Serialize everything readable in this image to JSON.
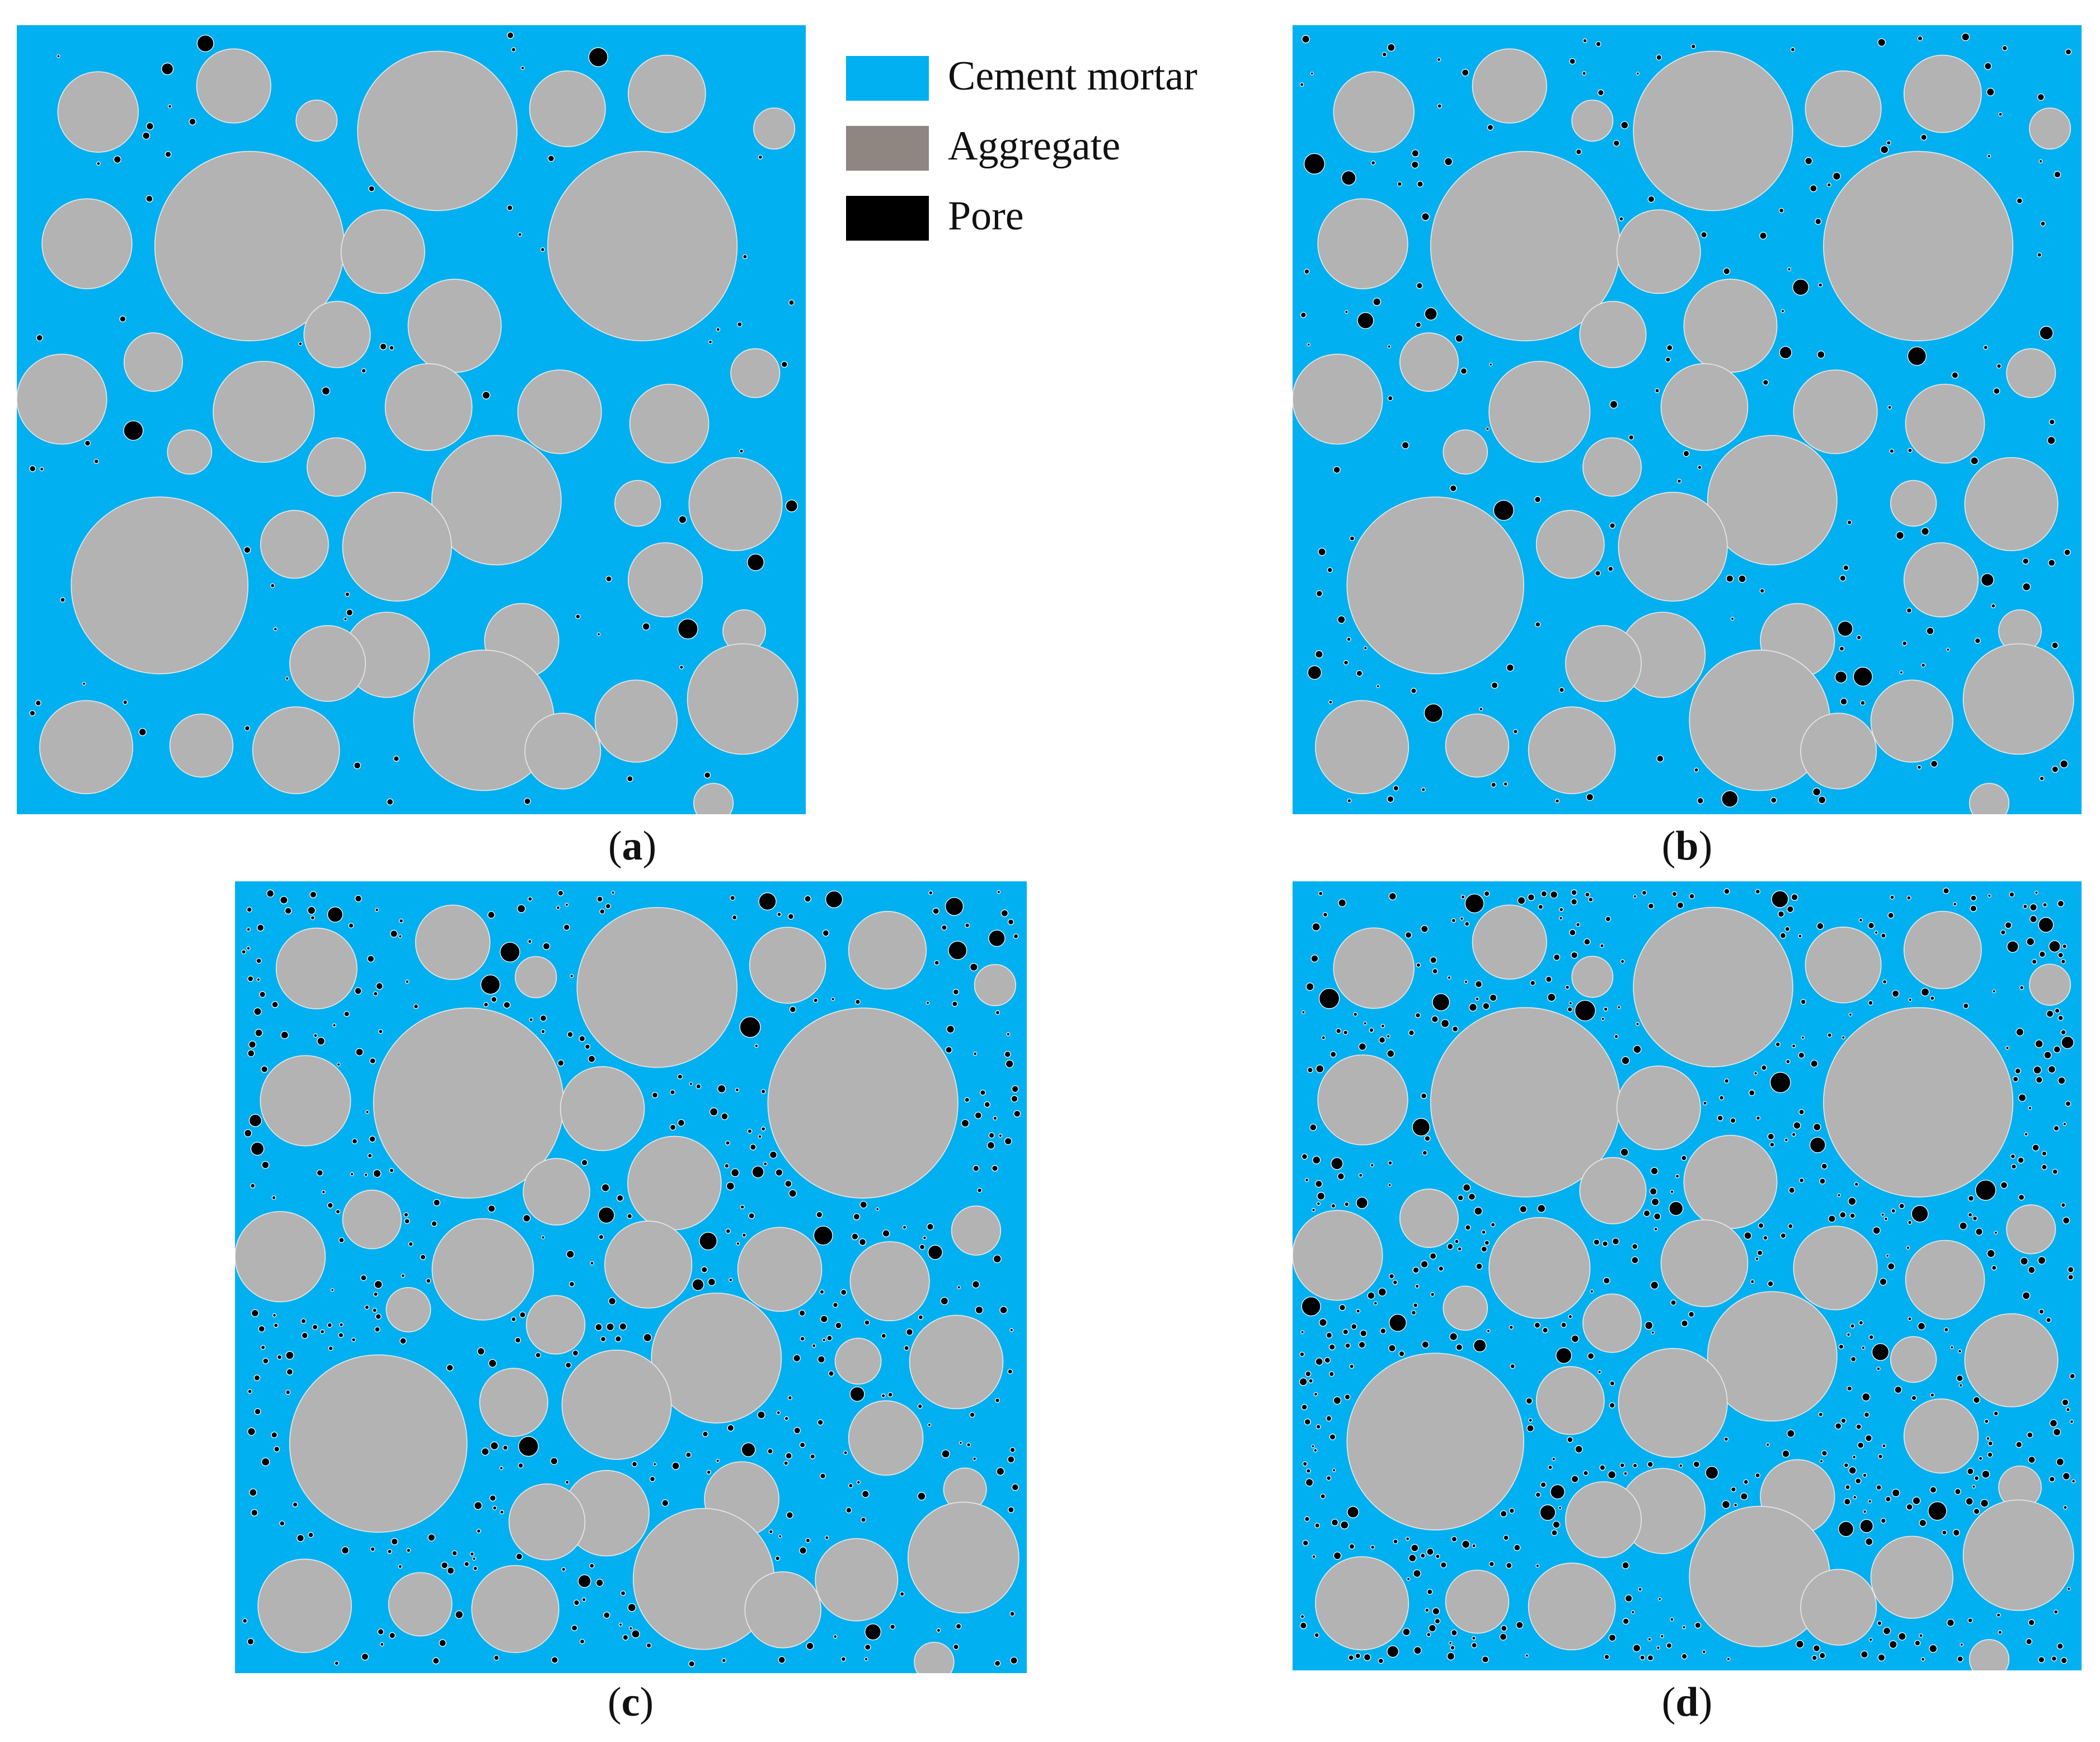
{
  "colors": {
    "mortar": "#00b0f0",
    "aggregate_legend": "#8f8682",
    "aggregate_fill": "#b3b3b3",
    "pore": "#000000"
  },
  "legend": {
    "items": [
      {
        "label": "Cement mortar",
        "color": "#00b0f0"
      },
      {
        "label": "Aggregate",
        "color": "#8f8682"
      },
      {
        "label": "Pore",
        "color": "#000000"
      }
    ]
  },
  "panels": [
    {
      "id": "a",
      "letter": "a",
      "pore_count": 70,
      "pore_seed": 11
    },
    {
      "id": "b",
      "letter": "b",
      "pore_count": 180,
      "pore_seed": 23
    },
    {
      "id": "c",
      "letter": "c",
      "pore_count": 420,
      "pore_seed": 37
    },
    {
      "id": "d",
      "letter": "d",
      "pore_count": 600,
      "pore_seed": 53
    }
  ]
}
